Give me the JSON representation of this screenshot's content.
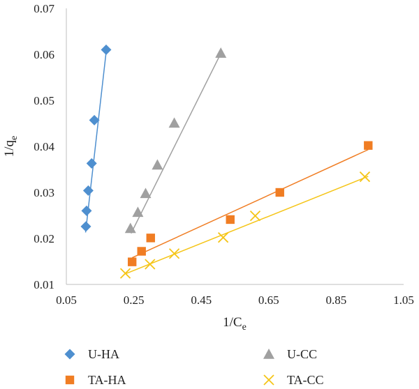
{
  "chart_data": {
    "type": "scatter",
    "xlabel": "1/C",
    "xlabel_sub": "e",
    "ylabel": "1/q",
    "ylabel_sub": "e",
    "xlim": [
      0.05,
      1.05
    ],
    "ylim": [
      0.01,
      0.07
    ],
    "xticks": [
      0.05,
      0.25,
      0.45,
      0.65,
      0.85,
      1.05
    ],
    "yticks": [
      0.01,
      0.02,
      0.03,
      0.04,
      0.05,
      0.06,
      0.07
    ],
    "xtick_labels": [
      "0.05",
      "0.25",
      "0.45",
      "0.65",
      "0.85",
      "1.05"
    ],
    "ytick_labels": [
      "0.01",
      "0.02",
      "0.03",
      "0.04",
      "0.05",
      "0.06",
      "0.07"
    ],
    "grid": false,
    "legend_position": "bottom",
    "series": [
      {
        "name": "U-HA",
        "marker": "diamond",
        "color": "#4e8fcf",
        "x": [
          0.108,
          0.11,
          0.115,
          0.125,
          0.133,
          0.168
        ],
        "y": [
          0.0226,
          0.026,
          0.0304,
          0.0363,
          0.0457,
          0.061
        ],
        "trendline": [
          [
            0.107,
            0.0213
          ],
          [
            0.17,
            0.0618
          ]
        ]
      },
      {
        "name": "U-CC",
        "marker": "triangle",
        "color": "#a0a0a0",
        "x": [
          0.24,
          0.262,
          0.285,
          0.32,
          0.37,
          0.508
        ],
        "y": [
          0.0222,
          0.0257,
          0.0298,
          0.036,
          0.0451,
          0.0603
        ],
        "trendline": [
          [
            0.242,
            0.0211
          ],
          [
            0.51,
            0.0605
          ]
        ]
      },
      {
        "name": "TA-HA",
        "marker": "square",
        "color": "#f07d23",
        "x": [
          0.245,
          0.273,
          0.3,
          0.536,
          0.683,
          0.945
        ],
        "y": [
          0.0149,
          0.0172,
          0.0201,
          0.0241,
          0.03,
          0.0402
        ],
        "trendline": [
          [
            0.245,
            0.0158
          ],
          [
            0.945,
            0.0393
          ]
        ]
      },
      {
        "name": "TA-CC",
        "marker": "cross",
        "color": "#f5c518",
        "x": [
          0.225,
          0.298,
          0.37,
          0.515,
          0.61,
          0.935
        ],
        "y": [
          0.0124,
          0.0144,
          0.0167,
          0.0202,
          0.0249,
          0.0334
        ],
        "trendline": [
          [
            0.225,
            0.0123
          ],
          [
            0.945,
            0.0335
          ]
        ]
      }
    ]
  }
}
